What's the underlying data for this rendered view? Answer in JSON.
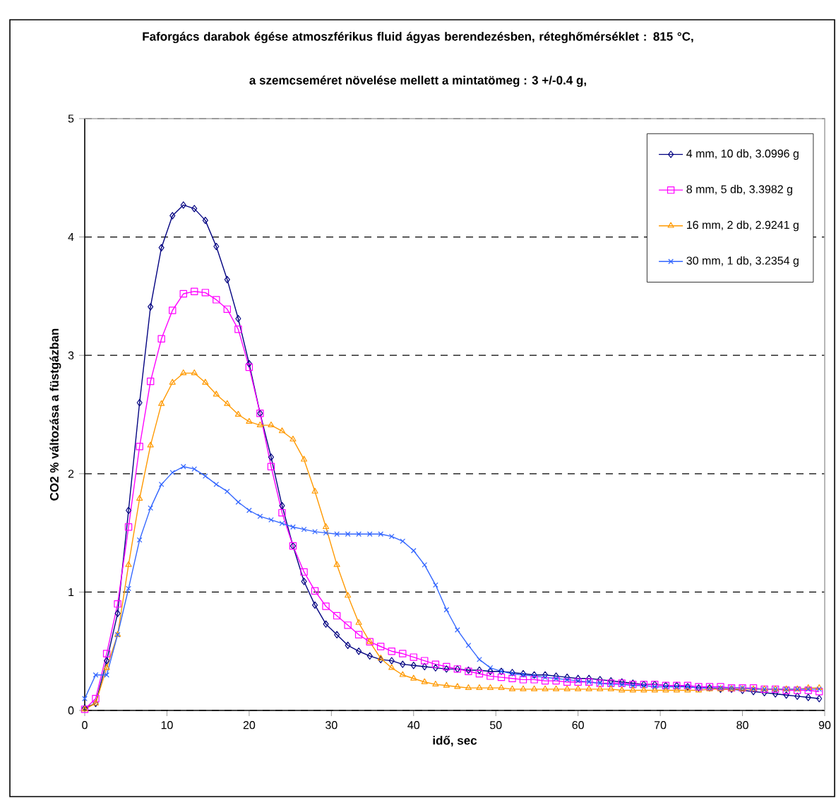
{
  "chart_data": {
    "type": "line",
    "title": "Faforgács  darabok  égése atmoszférikus fluid ágyas  berendezésben, réteghőmérséklet : 815 °C,",
    "subtitle": "a  szemcseméret növelése mellett  a mintatömeg : 3 +/-0.4 g,",
    "xlabel": "idő, sec",
    "ylabel": "CO2 % változása a füstgázban",
    "x": [
      0,
      1.33,
      2.67,
      4,
      5.33,
      6.67,
      8,
      9.33,
      10.67,
      12,
      13.33,
      14.67,
      16,
      17.33,
      18.67,
      20,
      21.33,
      22.67,
      24,
      25.33,
      26.67,
      28,
      29.33,
      30.67,
      32,
      33.33,
      34.67,
      36,
      37.33,
      38.67,
      40,
      41.33,
      42.67,
      44,
      45.33,
      46.67,
      48,
      49.33,
      50.67,
      52,
      53.33,
      54.67,
      56,
      57.33,
      58.67,
      60,
      61.33,
      62.67,
      64,
      65.33,
      66.67,
      68,
      69.33,
      70.67,
      72,
      73.33,
      74.67,
      76,
      77.33,
      78.67,
      80,
      81.33,
      82.67,
      84,
      85.33,
      86.67,
      88,
      89.33
    ],
    "series": [
      {
        "name": "4 mm,   10 db,   3.0996 g",
        "color": "#000080",
        "marker": "diamond",
        "values": [
          0.02,
          0.06,
          0.42,
          0.82,
          1.69,
          2.6,
          3.41,
          3.91,
          4.18,
          4.27,
          4.24,
          4.14,
          3.92,
          3.64,
          3.31,
          2.93,
          2.51,
          2.14,
          1.73,
          1.39,
          1.09,
          0.89,
          0.73,
          0.64,
          0.55,
          0.5,
          0.46,
          0.43,
          0.42,
          0.39,
          0.38,
          0.37,
          0.36,
          0.35,
          0.35,
          0.34,
          0.34,
          0.33,
          0.33,
          0.32,
          0.31,
          0.3,
          0.3,
          0.29,
          0.28,
          0.27,
          0.27,
          0.26,
          0.25,
          0.24,
          0.23,
          0.22,
          0.22,
          0.21,
          0.21,
          0.2,
          0.19,
          0.19,
          0.18,
          0.18,
          0.17,
          0.16,
          0.15,
          0.14,
          0.13,
          0.12,
          0.11,
          0.1
        ]
      },
      {
        "name": "8 mm,   5 db,   3.3982 g",
        "color": "#ff00ff",
        "marker": "square",
        "values": [
          0.01,
          0.1,
          0.48,
          0.9,
          1.55,
          2.23,
          2.78,
          3.14,
          3.38,
          3.52,
          3.54,
          3.53,
          3.47,
          3.39,
          3.22,
          2.9,
          2.51,
          2.06,
          1.67,
          1.39,
          1.17,
          1.01,
          0.88,
          0.8,
          0.72,
          0.64,
          0.58,
          0.54,
          0.5,
          0.48,
          0.45,
          0.42,
          0.39,
          0.37,
          0.35,
          0.33,
          0.31,
          0.29,
          0.28,
          0.27,
          0.26,
          0.26,
          0.25,
          0.25,
          0.24,
          0.24,
          0.24,
          0.23,
          0.23,
          0.23,
          0.22,
          0.22,
          0.22,
          0.21,
          0.21,
          0.21,
          0.2,
          0.2,
          0.2,
          0.19,
          0.19,
          0.19,
          0.18,
          0.18,
          0.17,
          0.17,
          0.17,
          0.16
        ]
      },
      {
        "name": "16 mm,   2 db,   2.9241 g",
        "color": "#ff9900",
        "marker": "triangle",
        "values": [
          0.01,
          0.06,
          0.36,
          0.64,
          1.23,
          1.79,
          2.24,
          2.59,
          2.77,
          2.85,
          2.85,
          2.77,
          2.67,
          2.59,
          2.5,
          2.44,
          2.41,
          2.41,
          2.36,
          2.29,
          2.12,
          1.85,
          1.55,
          1.23,
          0.97,
          0.74,
          0.58,
          0.44,
          0.36,
          0.3,
          0.27,
          0.24,
          0.22,
          0.21,
          0.2,
          0.19,
          0.19,
          0.19,
          0.19,
          0.18,
          0.18,
          0.18,
          0.18,
          0.18,
          0.18,
          0.18,
          0.18,
          0.18,
          0.18,
          0.17,
          0.17,
          0.17,
          0.17,
          0.17,
          0.17,
          0.17,
          0.17,
          0.18,
          0.18,
          0.18,
          0.18,
          0.18,
          0.18,
          0.18,
          0.18,
          0.18,
          0.19,
          0.19
        ]
      },
      {
        "name": "30 mm,   1 db,   3.2354 g",
        "color": "#3366ff",
        "marker": "cross",
        "values": [
          0.1,
          0.3,
          0.3,
          0.64,
          1.03,
          1.44,
          1.71,
          1.91,
          2.01,
          2.06,
          2.04,
          1.98,
          1.91,
          1.85,
          1.76,
          1.69,
          1.64,
          1.61,
          1.58,
          1.55,
          1.53,
          1.51,
          1.5,
          1.49,
          1.49,
          1.49,
          1.49,
          1.49,
          1.47,
          1.43,
          1.35,
          1.23,
          1.06,
          0.85,
          0.68,
          0.55,
          0.43,
          0.36,
          0.33,
          0.31,
          0.3,
          0.29,
          0.28,
          0.27,
          0.26,
          0.25,
          0.24,
          0.23,
          0.22,
          0.22,
          0.21,
          0.21,
          0.2,
          0.2,
          0.2,
          0.2,
          0.19,
          0.19,
          0.19,
          0.19,
          0.19,
          0.18,
          0.18,
          0.18,
          0.18,
          0.18,
          0.18,
          0.18
        ]
      }
    ],
    "xlim": [
      0,
      90
    ],
    "ylim": [
      0,
      5
    ],
    "xticks": [
      0,
      10,
      20,
      30,
      40,
      50,
      60,
      70,
      80,
      90
    ],
    "yticks": [
      0,
      1,
      2,
      3,
      4,
      5
    ],
    "grid": "y",
    "legend": "top right"
  }
}
